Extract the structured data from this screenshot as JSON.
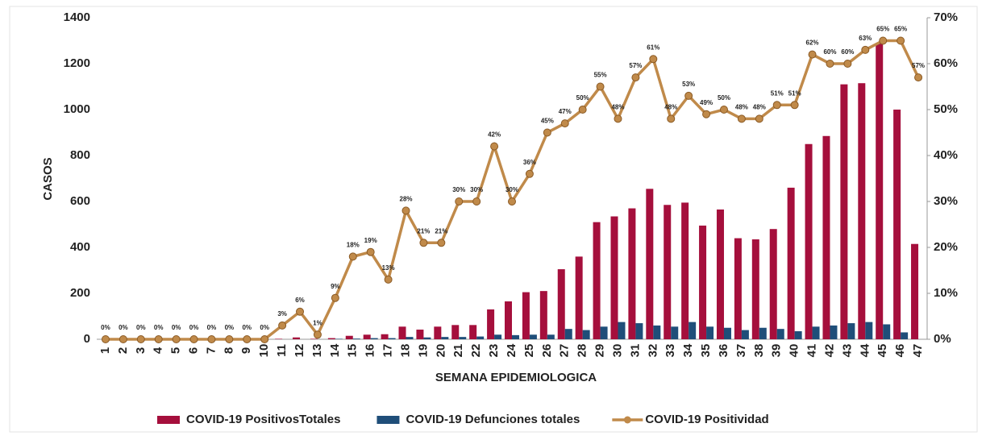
{
  "chart_data": {
    "type": "combo",
    "xlabel": "SEMANA EPIDEMIOLOGICA",
    "ylabel": "CASOS",
    "categories": [
      "1",
      "2",
      "3",
      "4",
      "5",
      "6",
      "7",
      "8",
      "9",
      "10",
      "11",
      "12",
      "13",
      "14",
      "15",
      "16",
      "17",
      "18",
      "19",
      "20",
      "21",
      "22",
      "23",
      "24",
      "25",
      "26",
      "27",
      "28",
      "29",
      "30",
      "31",
      "32",
      "33",
      "34",
      "35",
      "36",
      "37",
      "38",
      "39",
      "40",
      "41",
      "42",
      "43",
      "44",
      "45",
      "46",
      "47"
    ],
    "ylim": [
      0,
      1400
    ],
    "yticks": [
      0,
      200,
      400,
      600,
      800,
      1000,
      1200,
      1400
    ],
    "y2lim": [
      0,
      70
    ],
    "y2ticks": [
      {
        "value": 0,
        "label": "0%"
      },
      {
        "value": 10,
        "label": "10%"
      },
      {
        "value": 20,
        "label": "20%"
      },
      {
        "value": 30,
        "label": "30%"
      },
      {
        "value": 40,
        "label": "40%"
      },
      {
        "value": 50,
        "label": "50%"
      },
      {
        "value": 60,
        "label": "60%"
      },
      {
        "value": 70,
        "label": "70%"
      }
    ],
    "legend": "bottom",
    "series": [
      {
        "name": "COVID-19 PositivosTotales",
        "type": "bar",
        "color": "#a50f3c",
        "values": [
          0,
          0,
          0,
          0,
          0,
          0,
          0,
          0,
          0,
          0,
          2,
          8,
          2,
          5,
          15,
          20,
          22,
          55,
          42,
          55,
          62,
          62,
          130,
          165,
          205,
          210,
          305,
          360,
          510,
          535,
          570,
          655,
          585,
          595,
          495,
          565,
          440,
          435,
          480,
          660,
          850,
          885,
          1110,
          1115,
          1290,
          1000,
          415
        ]
      },
      {
        "name": "COVID-19 Defunciones totales",
        "type": "bar",
        "color": "#1f4e79",
        "values": [
          0,
          0,
          0,
          0,
          0,
          0,
          0,
          0,
          0,
          0,
          0,
          0,
          0,
          2,
          3,
          5,
          5,
          10,
          8,
          10,
          10,
          12,
          20,
          18,
          20,
          20,
          45,
          40,
          55,
          75,
          70,
          60,
          55,
          75,
          55,
          50,
          40,
          50,
          45,
          35,
          55,
          60,
          70,
          75,
          65,
          30,
          0
        ]
      },
      {
        "name": "COVID-19 Positividad",
        "type": "line",
        "axis": "y2",
        "color": "#c08a4a",
        "values": [
          0,
          0,
          0,
          0,
          0,
          0,
          0,
          0,
          0,
          0,
          3,
          6,
          1,
          9,
          18,
          19,
          13,
          28,
          21,
          21,
          30,
          30,
          42,
          30,
          36,
          45,
          47,
          50,
          55,
          48,
          57,
          61,
          48,
          53,
          49,
          50,
          48,
          48,
          51,
          51,
          62,
          60,
          60,
          63,
          65,
          65,
          57
        ],
        "value_labels": [
          "0%",
          "0%",
          "0%",
          "0%",
          "0%",
          "0%",
          "0%",
          "0%",
          "0%",
          "0%",
          "3%",
          "6%",
          "1%",
          "9%",
          "18%",
          "19%",
          "13%",
          "28%",
          "21%",
          "21%",
          "30%",
          "30%",
          "42%",
          "30%",
          "36%",
          "45%",
          "47%",
          "50%",
          "55%",
          "48%",
          "57%",
          "61%",
          "48%",
          "53%",
          "49%",
          "50%",
          "48%",
          "48%",
          "51%",
          "51%",
          "62%",
          "60%",
          "60%",
          "63%",
          "65%",
          "65%",
          "57%"
        ]
      }
    ]
  }
}
